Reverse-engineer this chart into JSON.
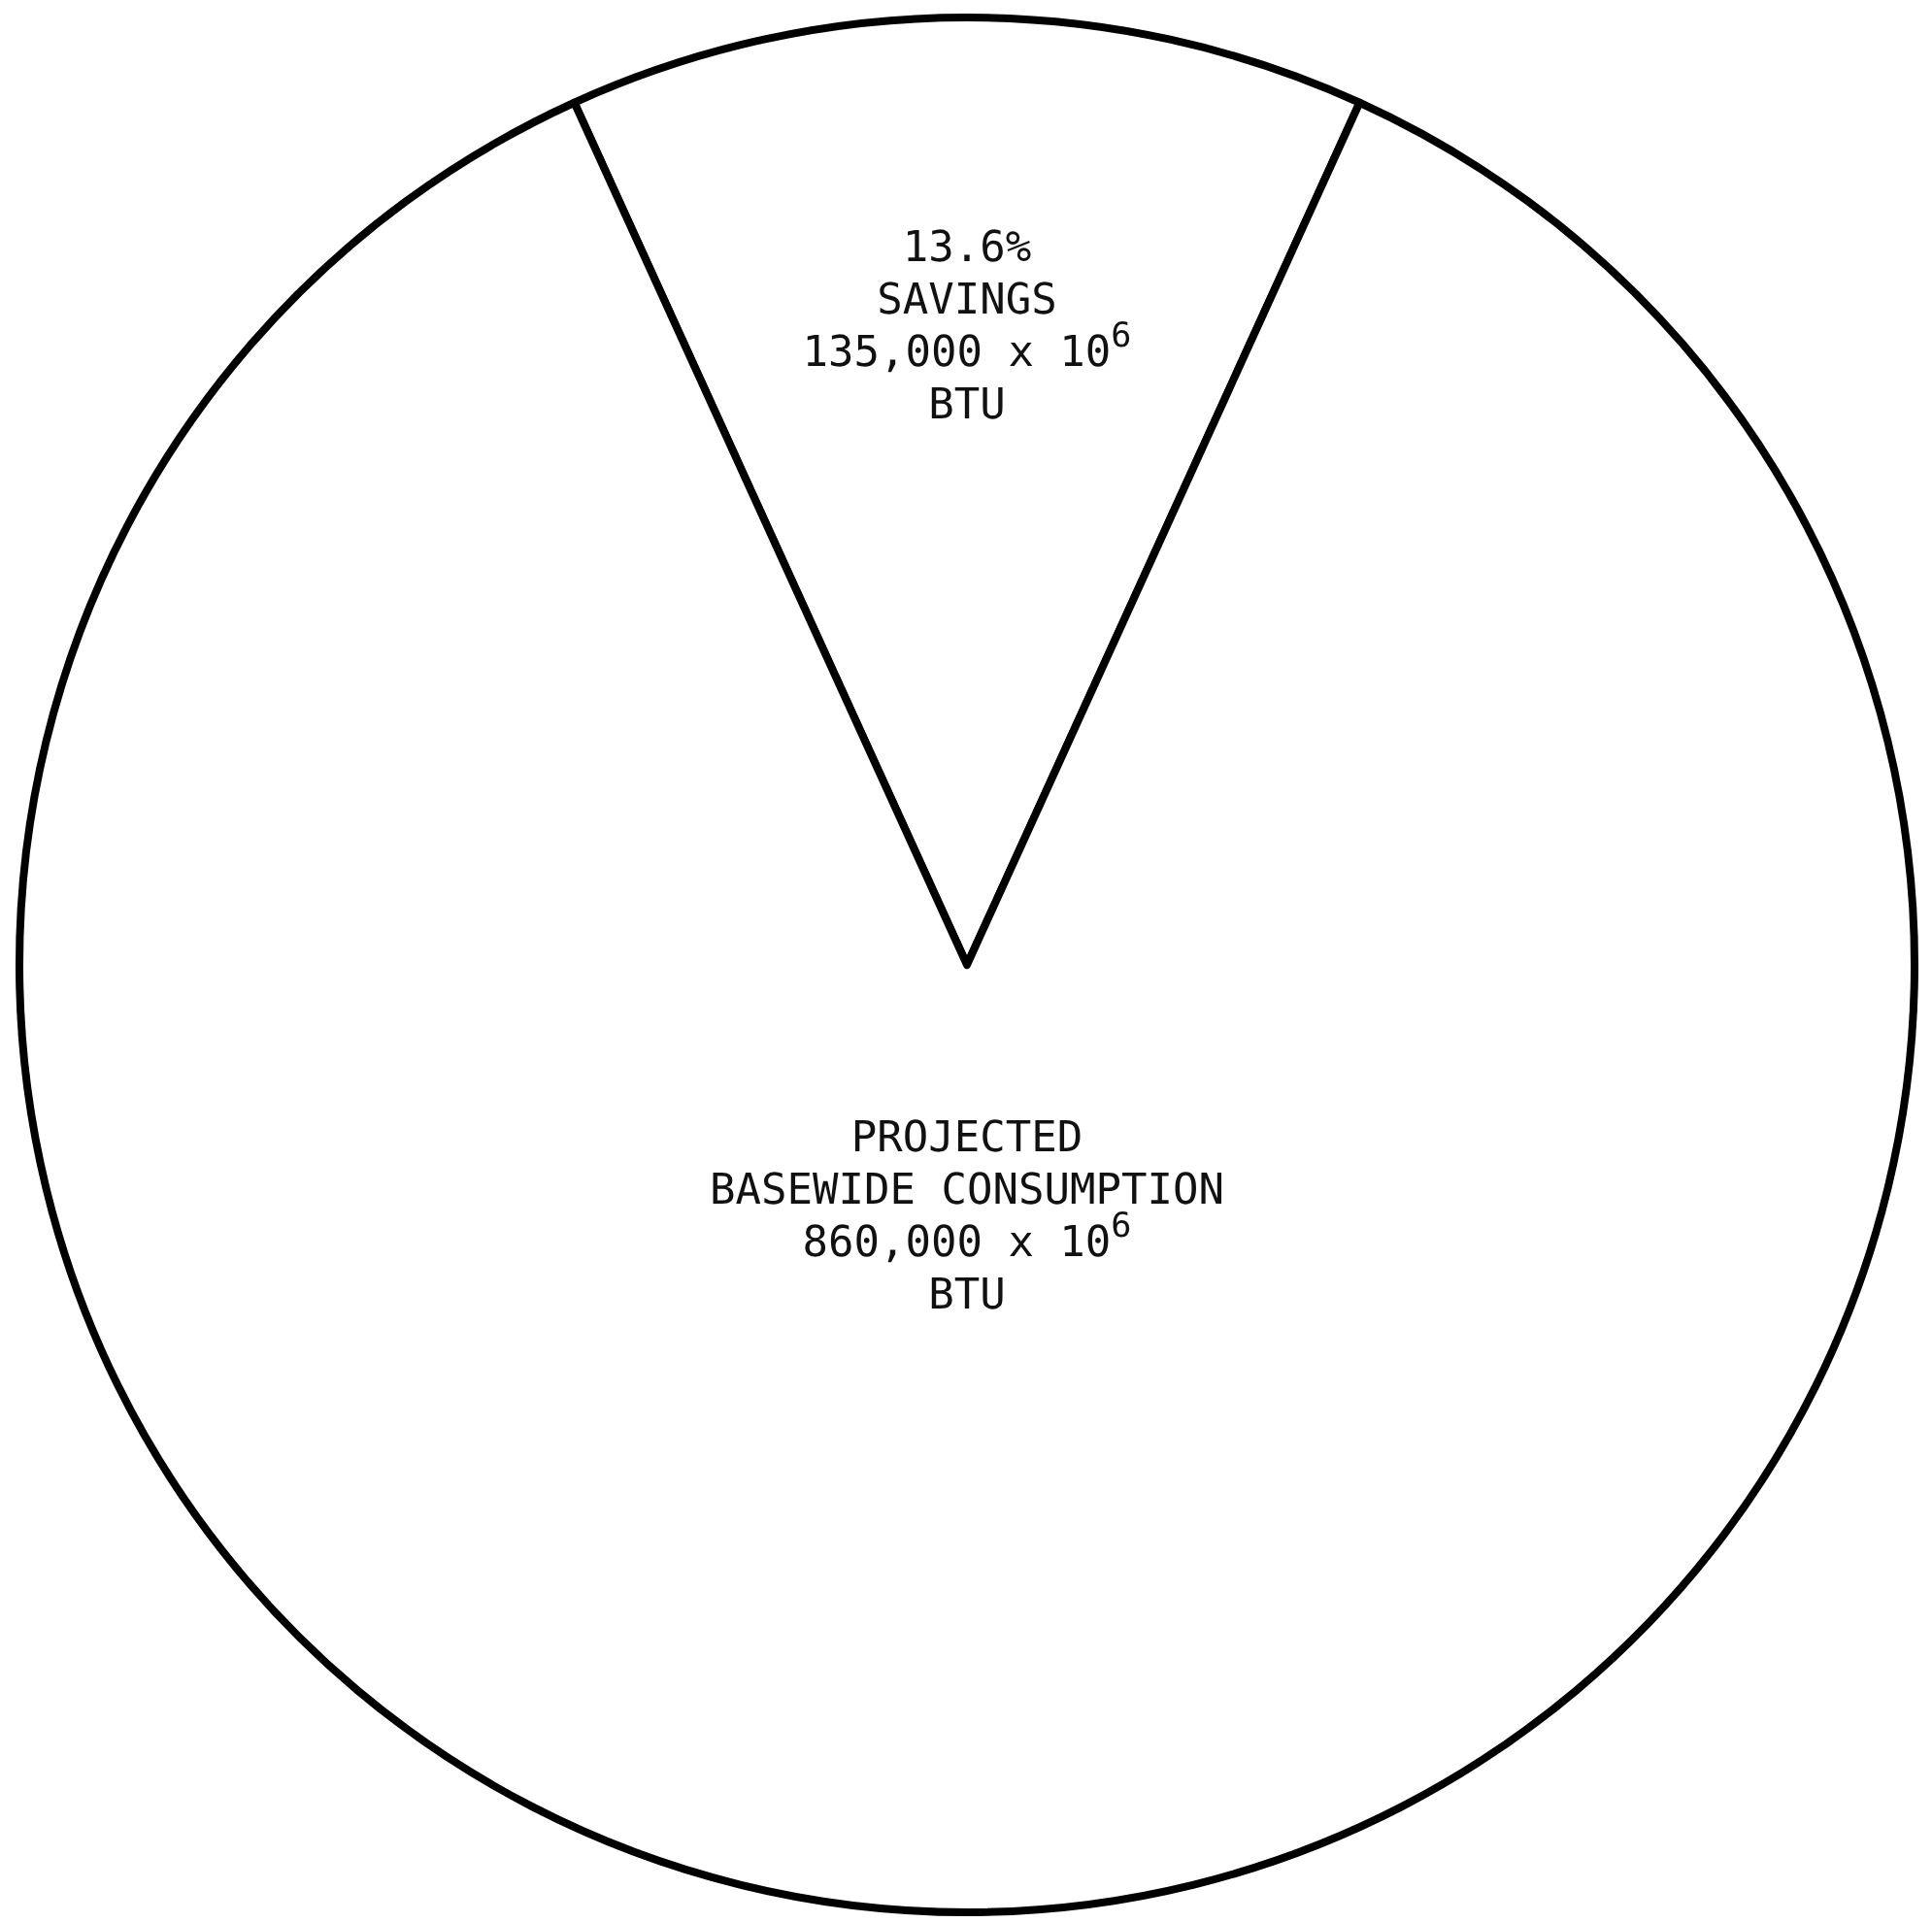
{
  "chart_data": {
    "type": "pie",
    "categories": [
      "SAVINGS",
      "PROJECTED\nBASEWIDE CONSUMPTION"
    ],
    "values": [
      13.6,
      86.4
    ],
    "colors": [
      "#ffffff",
      "#ffffff"
    ],
    "value_labels": [
      "13.6%",
      null
    ],
    "annotations": [
      "135,000 x 10$^{6}$\nBTU",
      "860,000 x 10$^{6}$\nBTU"
    ]
  }
}
